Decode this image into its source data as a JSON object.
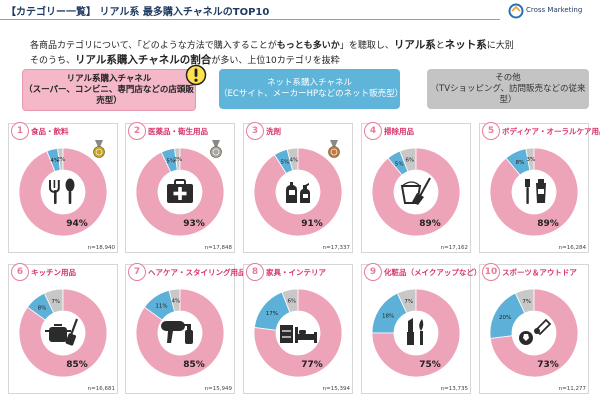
{
  "header": {
    "title": "【カテゴリー一覧】 リアル系 最多購入チャネルのTOP10",
    "logo_text": "Cross Marketing"
  },
  "intro": {
    "line1_a": "各商品カテゴリについて、「どのような方法で購入することが",
    "line1_b": "もっとも多いか",
    "line1_c": "」を聴取し、",
    "line1_d": "リアル系",
    "line1_e": "と",
    "line1_f": "ネット系",
    "line1_g": "に大別",
    "line2_a": "そのうち、",
    "line2_b": "リアル系購入チャネルの割合",
    "line2_c": "が多い、上位10カテゴリを抜粋"
  },
  "legend_boxes": {
    "real_line1": "リアル系購入チャネル",
    "real_line2": "（スーパー、コンビニ、専門店などの店頭販売型）",
    "net_line1": "ネット系購入チャネル",
    "net_line2": "（ECサイト、メーカーHPなどのネット販売型）",
    "other_line1": "その他",
    "other_line2": "（TVショッピング、訪問販売などの従来型）"
  },
  "colors": {
    "real": "#eda4b8",
    "net": "#5db0d8",
    "other": "#c8c8c8",
    "accent": "#d8336a",
    "gold": "#c9a227",
    "silver": "#a6a6a6",
    "bronze": "#c07a4a"
  },
  "chart_data": [
    {
      "type": "pie",
      "rank": "1",
      "title": "食品・飲料",
      "values": {
        "real": 94,
        "net": 4,
        "other": 2
      },
      "labels": {
        "real": "94%",
        "net": "4%",
        "other": "2%"
      },
      "n": "n=18,940",
      "icon": "fork-spoon-icon",
      "medal": "gold"
    },
    {
      "type": "pie",
      "rank": "2",
      "title": "医薬品・衛生用品",
      "values": {
        "real": 93,
        "net": 5,
        "other": 2
      },
      "labels": {
        "real": "93%",
        "net": "5%",
        "other": "2%"
      },
      "n": "n=17,848",
      "icon": "first-aid-kit-icon",
      "medal": "silver"
    },
    {
      "type": "pie",
      "rank": "3",
      "title": "洗剤",
      "values": {
        "real": 91,
        "net": 5,
        "other": 4
      },
      "labels": {
        "real": "91%",
        "net": "5%",
        "other": "4%"
      },
      "n": "n=17,337",
      "icon": "detergent-bottles-icon",
      "medal": "bronze"
    },
    {
      "type": "pie",
      "rank": "4",
      "title": "掃除用品",
      "values": {
        "real": 89,
        "net": 5,
        "other": 6
      },
      "labels": {
        "real": "89%",
        "net": "5%",
        "other": "6%"
      },
      "n": "n=17,162",
      "icon": "bucket-broom-icon",
      "medal": ""
    },
    {
      "type": "pie",
      "rank": "5",
      "title": "ボディケア・オーラルケア用品",
      "values": {
        "real": 89,
        "net": 8,
        "other": 3
      },
      "labels": {
        "real": "89%",
        "net": "8%",
        "other": "3%"
      },
      "n": "n=16,284",
      "icon": "toothbrush-icon",
      "medal": ""
    },
    {
      "type": "pie",
      "rank": "6",
      "title": "キッチン用品",
      "values": {
        "real": 85,
        "net": 8,
        "other": 7
      },
      "labels": {
        "real": "85%",
        "net": "8%",
        "other": "7%"
      },
      "n": "n=16,681",
      "icon": "pot-spatula-icon",
      "medal": ""
    },
    {
      "type": "pie",
      "rank": "7",
      "title": "ヘアケア・スタイリング用品",
      "values": {
        "real": 85,
        "net": 11,
        "other": 4
      },
      "labels": {
        "real": "85%",
        "net": "11%",
        "other": "4%"
      },
      "n": "n=15,949",
      "icon": "hair-dryer-icon",
      "medal": ""
    },
    {
      "type": "pie",
      "rank": "8",
      "title": "家具・インテリア",
      "values": {
        "real": 77,
        "net": 17,
        "other": 6
      },
      "labels": {
        "real": "77%",
        "net": "17%",
        "other": "6%"
      },
      "n": "n=15,394",
      "icon": "bed-drawer-icon",
      "medal": ""
    },
    {
      "type": "pie",
      "rank": "9",
      "title": "化粧品（メイクアップなど）",
      "values": {
        "real": 75,
        "net": 18,
        "other": 7
      },
      "labels": {
        "real": "75%",
        "net": "18%",
        "other": "7%"
      },
      "n": "n=13,735",
      "icon": "lipstick-brush-icon",
      "medal": ""
    },
    {
      "type": "pie",
      "rank": "10",
      "title": "スポーツ＆アウトドア",
      "values": {
        "real": 73,
        "net": 20,
        "other": 7
      },
      "labels": {
        "real": "73%",
        "net": "20%",
        "other": "7%"
      },
      "n": "n=11,277",
      "icon": "shuttlecock-ball-icon",
      "medal": ""
    }
  ]
}
